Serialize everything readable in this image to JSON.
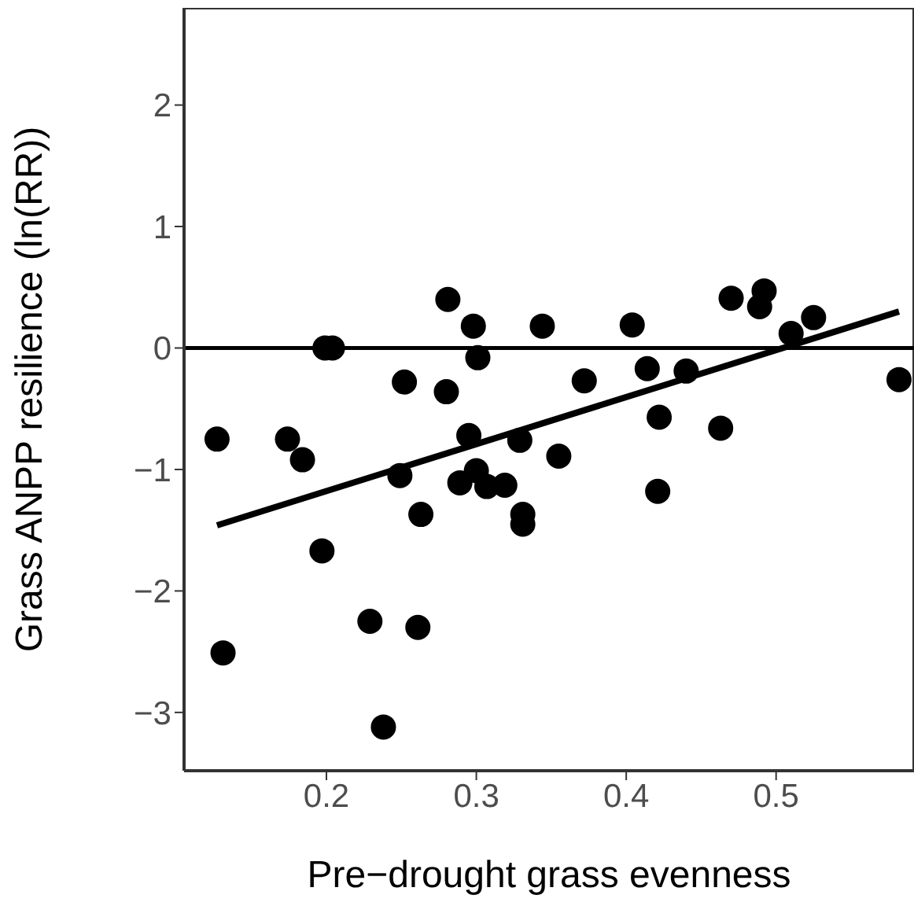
{
  "chart_data": {
    "type": "scatter",
    "xlabel": "Pre−drought grass evenness",
    "ylabel": "Grass ANPP resilience (ln(RR))",
    "xlim": [
      0.105,
      0.592
    ],
    "ylim": [
      -3.48,
      2.8
    ],
    "xticks": [
      0.2,
      0.3,
      0.4,
      0.5
    ],
    "yticks": [
      -3,
      -2,
      -1,
      0,
      1,
      2
    ],
    "grid": false,
    "legend": false,
    "ref_lines": [
      {
        "axis": "y",
        "value": 0,
        "color": "#000000"
      }
    ],
    "series": [
      {
        "color": "#000000",
        "marker": "circle",
        "x": [
          0.127,
          0.131,
          0.174,
          0.184,
          0.197,
          0.199,
          0.204,
          0.229,
          0.238,
          0.249,
          0.252,
          0.261,
          0.263,
          0.281,
          0.28,
          0.289,
          0.295,
          0.298,
          0.301,
          0.3,
          0.307,
          0.319,
          0.329,
          0.331,
          0.331,
          0.344,
          0.355,
          0.372,
          0.404,
          0.414,
          0.422,
          0.421,
          0.44,
          0.463,
          0.47,
          0.489,
          0.492,
          0.51,
          0.525,
          0.582
        ],
        "values": [
          -0.75,
          -2.51,
          -0.75,
          -0.92,
          -1.67,
          0.0,
          0.0,
          -2.25,
          -3.12,
          -1.05,
          -0.28,
          -2.3,
          -1.37,
          0.4,
          -0.36,
          -1.11,
          -0.72,
          0.18,
          -0.08,
          -1.01,
          -1.14,
          -1.13,
          -0.76,
          -1.37,
          -1.45,
          0.18,
          -0.89,
          -0.27,
          0.19,
          -0.17,
          -0.57,
          -1.18,
          -0.19,
          -0.66,
          0.41,
          0.34,
          0.47,
          0.12,
          0.25,
          -0.26
        ]
      },
      {
        "type": "line",
        "color": "#000000",
        "x": [
          0.127,
          0.582
        ],
        "values": [
          -1.46,
          0.3
        ]
      }
    ]
  }
}
